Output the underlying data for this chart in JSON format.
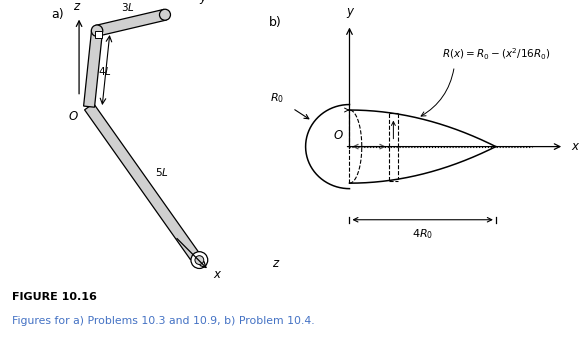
{
  "fig_width": 5.87,
  "fig_height": 3.37,
  "dpi": 100,
  "background": "#ffffff",
  "label_a": "a)",
  "label_b": "b)",
  "figure_label": "FIGURE 10.16",
  "caption": "Figures for a) Problems 10.3 and 10.9, b) Problem 10.4.",
  "caption_color": "#4472c4",
  "text_color": "#000000",
  "gray_fill": "#d0d0d0",
  "gray_light": "#e8e8e8"
}
